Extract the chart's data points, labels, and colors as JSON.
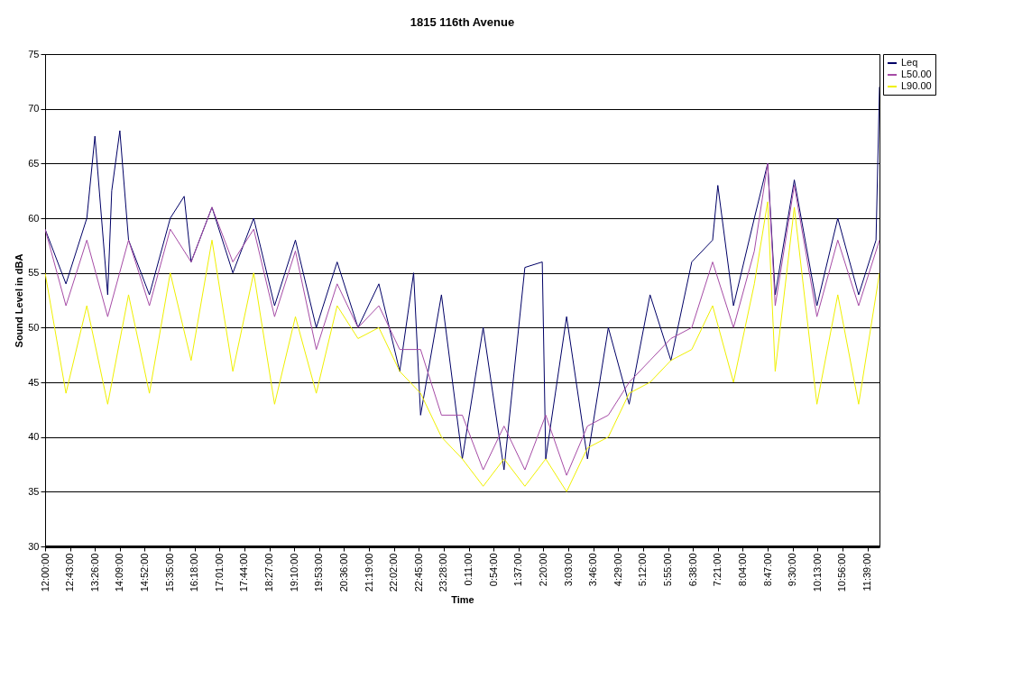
{
  "chart_data": {
    "type": "line",
    "title": "1815 116th Avenue",
    "xlabel": "Time",
    "ylabel": "Sound Level in dBA",
    "xlim": [
      "2000-01-01T12:00",
      "2000-01-02T12:00"
    ],
    "ylim": [
      30,
      75
    ],
    "yticks": [
      30,
      35,
      40,
      45,
      50,
      55,
      60,
      65,
      70,
      75
    ],
    "xticks": [
      {
        "value": "2000-01-01T12:00",
        "label": "12:00:00"
      },
      {
        "value": "2000-01-01T12:43",
        "label": "12:43:00"
      },
      {
        "value": "2000-01-01T13:26",
        "label": "13:26:00"
      },
      {
        "value": "2000-01-01T14:09",
        "label": "14:09:00"
      },
      {
        "value": "2000-01-01T14:52",
        "label": "14:52:00"
      },
      {
        "value": "2000-01-01T15:35",
        "label": "15:35:00"
      },
      {
        "value": "2000-01-01T16:18",
        "label": "16:18:00"
      },
      {
        "value": "2000-01-01T17:01",
        "label": "17:01:00"
      },
      {
        "value": "2000-01-01T17:44",
        "label": "17:44:00"
      },
      {
        "value": "2000-01-01T18:27",
        "label": "18:27:00"
      },
      {
        "value": "2000-01-01T19:10",
        "label": "19:10:00"
      },
      {
        "value": "2000-01-01T19:53",
        "label": "19:53:00"
      },
      {
        "value": "2000-01-01T20:36",
        "label": "20:36:00"
      },
      {
        "value": "2000-01-01T21:19",
        "label": "21:19:00"
      },
      {
        "value": "2000-01-01T22:02",
        "label": "22:02:00"
      },
      {
        "value": "2000-01-01T22:45",
        "label": "22:45:00"
      },
      {
        "value": "2000-01-01T23:28",
        "label": "23:28:00"
      },
      {
        "value": "2000-01-02T00:11",
        "label": "0:11:00"
      },
      {
        "value": "2000-01-02T00:54",
        "label": "0:54:00"
      },
      {
        "value": "2000-01-02T01:37",
        "label": "1:37:00"
      },
      {
        "value": "2000-01-02T02:20",
        "label": "2:20:00"
      },
      {
        "value": "2000-01-02T03:03",
        "label": "3:03:00"
      },
      {
        "value": "2000-01-02T03:46",
        "label": "3:46:00"
      },
      {
        "value": "2000-01-02T04:29",
        "label": "4:29:00"
      },
      {
        "value": "2000-01-02T05:12",
        "label": "5:12:00"
      },
      {
        "value": "2000-01-02T05:55",
        "label": "5:55:00"
      },
      {
        "value": "2000-01-02T06:38",
        "label": "6:38:00"
      },
      {
        "value": "2000-01-02T07:21",
        "label": "7:21:00"
      },
      {
        "value": "2000-01-02T08:04",
        "label": "8:04:00"
      },
      {
        "value": "2000-01-02T08:47",
        "label": "8:47:00"
      },
      {
        "value": "2000-01-02T09:30",
        "label": "9:30:00"
      },
      {
        "value": "2000-01-02T10:13",
        "label": "10:13:00"
      },
      {
        "value": "2000-01-02T10:56",
        "label": "10:56:00"
      },
      {
        "value": "2000-01-02T11:39",
        "label": "11:39:00"
      }
    ],
    "grid": "y",
    "legend": "right",
    "series": [
      {
        "name": "Leq",
        "color": "#000066",
        "x": [
          "2000-01-01T12:00",
          "2000-01-01T12:36",
          "2000-01-01T13:12",
          "2000-01-01T13:26",
          "2000-01-01T13:48",
          "2000-01-01T13:55",
          "2000-01-01T14:09",
          "2000-01-01T14:24",
          "2000-01-01T15:00",
          "2000-01-01T15:36",
          "2000-01-01T16:00",
          "2000-01-01T16:12",
          "2000-01-01T16:48",
          "2000-01-01T17:24",
          "2000-01-01T18:00",
          "2000-01-01T18:36",
          "2000-01-01T19:12",
          "2000-01-01T19:48",
          "2000-01-01T20:24",
          "2000-01-01T21:00",
          "2000-01-01T21:36",
          "2000-01-01T22:12",
          "2000-01-01T22:36",
          "2000-01-01T22:48",
          "2000-01-01T23:24",
          "2000-01-02T00:00",
          "2000-01-02T00:36",
          "2000-01-02T01:12",
          "2000-01-02T01:48",
          "2000-01-02T02:18",
          "2000-01-02T02:24",
          "2000-01-02T03:00",
          "2000-01-02T03:36",
          "2000-01-02T04:12",
          "2000-01-02T04:48",
          "2000-01-02T05:24",
          "2000-01-02T06:00",
          "2000-01-02T06:36",
          "2000-01-02T07:12",
          "2000-01-02T07:21",
          "2000-01-02T07:48",
          "2000-01-02T08:24",
          "2000-01-02T08:47",
          "2000-01-02T09:00",
          "2000-01-02T09:33",
          "2000-01-02T10:12",
          "2000-01-02T10:48",
          "2000-01-02T11:24",
          "2000-01-02T11:54",
          "2000-01-02T12:00"
        ],
        "values": [
          59,
          54,
          60,
          67.5,
          53,
          62.5,
          68,
          58,
          53,
          60,
          62,
          56,
          61,
          55,
          60,
          52,
          58,
          50,
          56,
          50,
          54,
          46,
          55,
          42,
          53,
          38,
          50,
          37,
          55.5,
          56,
          38,
          51,
          38,
          50,
          43,
          53,
          47,
          56,
          58,
          63,
          52,
          60,
          65,
          53,
          63.5,
          52,
          60,
          53,
          58,
          72
        ]
      },
      {
        "name": "L50.00",
        "color": "#a64ca6",
        "x": [
          "2000-01-01T12:00",
          "2000-01-01T12:36",
          "2000-01-01T13:12",
          "2000-01-01T13:48",
          "2000-01-01T14:24",
          "2000-01-01T15:00",
          "2000-01-01T15:36",
          "2000-01-01T16:12",
          "2000-01-01T16:48",
          "2000-01-01T17:24",
          "2000-01-01T18:00",
          "2000-01-01T18:36",
          "2000-01-01T19:12",
          "2000-01-01T19:48",
          "2000-01-01T20:24",
          "2000-01-01T21:00",
          "2000-01-01T21:36",
          "2000-01-01T22:12",
          "2000-01-01T22:48",
          "2000-01-01T23:24",
          "2000-01-02T00:00",
          "2000-01-02T00:36",
          "2000-01-02T01:12",
          "2000-01-02T01:48",
          "2000-01-02T02:24",
          "2000-01-02T03:00",
          "2000-01-02T03:36",
          "2000-01-02T04:12",
          "2000-01-02T04:48",
          "2000-01-02T05:24",
          "2000-01-02T06:00",
          "2000-01-02T06:36",
          "2000-01-02T07:12",
          "2000-01-02T07:48",
          "2000-01-02T08:24",
          "2000-01-02T08:47",
          "2000-01-02T09:00",
          "2000-01-02T09:33",
          "2000-01-02T10:12",
          "2000-01-02T10:48",
          "2000-01-02T11:24",
          "2000-01-02T12:00"
        ],
        "values": [
          59,
          52,
          58,
          51,
          58,
          52,
          59,
          56,
          61,
          56,
          59,
          51,
          57,
          48,
          54,
          50,
          52,
          48,
          48,
          42,
          42,
          37,
          41,
          37,
          42,
          36.5,
          41,
          42,
          45,
          47,
          49,
          50,
          56,
          50,
          57,
          65,
          52,
          63,
          51,
          58,
          52,
          58
        ]
      },
      {
        "name": "L90.00",
        "color": "#f0f000",
        "x": [
          "2000-01-01T12:00",
          "2000-01-01T12:36",
          "2000-01-01T13:12",
          "2000-01-01T13:48",
          "2000-01-01T14:24",
          "2000-01-01T15:00",
          "2000-01-01T15:36",
          "2000-01-01T16:12",
          "2000-01-01T16:48",
          "2000-01-01T17:24",
          "2000-01-01T18:00",
          "2000-01-01T18:36",
          "2000-01-01T19:12",
          "2000-01-01T19:48",
          "2000-01-01T20:24",
          "2000-01-01T21:00",
          "2000-01-01T21:36",
          "2000-01-01T22:12",
          "2000-01-01T22:48",
          "2000-01-01T23:24",
          "2000-01-02T00:00",
          "2000-01-02T00:36",
          "2000-01-02T01:12",
          "2000-01-02T01:48",
          "2000-01-02T02:24",
          "2000-01-02T03:00",
          "2000-01-02T03:36",
          "2000-01-02T04:12",
          "2000-01-02T04:48",
          "2000-01-02T05:24",
          "2000-01-02T06:00",
          "2000-01-02T06:36",
          "2000-01-02T07:12",
          "2000-01-02T07:48",
          "2000-01-02T08:24",
          "2000-01-02T08:47",
          "2000-01-02T09:00",
          "2000-01-02T09:33",
          "2000-01-02T10:12",
          "2000-01-02T10:48",
          "2000-01-02T11:24",
          "2000-01-02T12:00"
        ],
        "values": [
          55,
          44,
          52,
          43,
          53,
          44,
          55,
          47,
          58,
          46,
          55,
          43,
          51,
          44,
          52,
          49,
          50,
          46,
          44,
          40,
          38,
          35.5,
          38,
          35.5,
          38,
          35,
          39,
          40,
          44,
          45,
          47,
          48,
          52,
          45,
          54,
          61.5,
          46,
          61,
          43,
          53,
          43,
          55
        ]
      }
    ]
  }
}
